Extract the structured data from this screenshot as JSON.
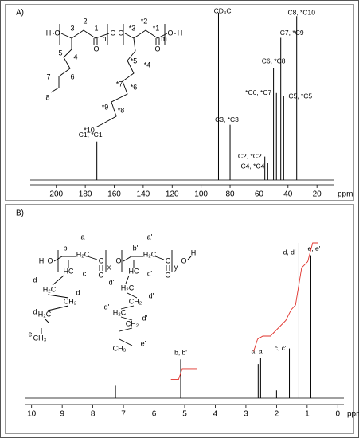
{
  "chart_data": [
    {
      "type": "spectrum",
      "panel_label": "A)",
      "xlabel": "ppm",
      "color": "#000000",
      "x": [
        172,
        88,
        80,
        56,
        54,
        50,
        48,
        45,
        43,
        34
      ],
      "values": [
        23,
        100,
        33,
        14,
        10,
        67,
        52,
        85,
        50,
        98
      ],
      "labels": [
        "C1, *C1",
        "CD₃Cl",
        "C3, *C3",
        "C2, *C2",
        "C4, *C4",
        "C6, *C8",
        "*C6, *C7",
        "C7, *C9",
        "C5, *C5",
        "C8, *C10"
      ],
      "xlim": [
        218,
        8
      ],
      "xticks": [
        200,
        180,
        160,
        140,
        120,
        100,
        80,
        60,
        40,
        20
      ],
      "structure": [
        "H",
        "O",
        "3",
        "2",
        "1",
        "O",
        "n",
        "O",
        "O",
        "*3",
        "*2",
        "*1",
        "O",
        "m",
        "O",
        "H",
        "5",
        "4",
        "7",
        "6",
        "8",
        "*5",
        "*4",
        "*7",
        "*6",
        "*9",
        "*8",
        "*10"
      ]
    },
    {
      "type": "spectrum",
      "panel_label": "B)",
      "xlabel": "ppm",
      "color": "#000000",
      "x": [
        7.26,
        5.13,
        2.6,
        2.52,
        2.0,
        1.58,
        1.27,
        0.88
      ],
      "values": [
        8,
        25,
        22,
        26,
        5,
        32,
        100,
        92
      ],
      "labels": [
        null,
        "b, b'",
        null,
        "a, a'",
        null,
        "c, c'",
        "d, d'",
        "e, e'"
      ],
      "xlim": [
        10.2,
        -0.2
      ],
      "xticks": [
        10,
        9,
        8,
        7,
        6,
        5,
        4,
        3,
        2,
        1,
        0
      ],
      "integral": {
        "color": "#e0302a",
        "x": [
          5.45,
          5.2,
          5.08,
          4.6,
          null,
          2.75,
          2.62,
          2.45,
          2.2,
          1.7,
          1.52,
          1.38,
          1.18,
          0.98,
          0.82,
          0.65
        ],
        "values": [
          12,
          12,
          19,
          19,
          null,
          30,
          38,
          40,
          40,
          50,
          57,
          60,
          84,
          88,
          100,
          100
        ]
      },
      "structure": [
        "H",
        "O",
        "b",
        "a",
        "H₂C",
        "C",
        "O",
        "x",
        "O",
        "b'",
        "a'",
        "H₂C",
        "C",
        "O",
        "y",
        "O",
        "H",
        "c",
        "HC",
        "d",
        "H₂C",
        "d",
        "CH₂",
        "d",
        "H₂C",
        "CH₃",
        "e",
        "c'",
        "HC",
        "d'",
        "H₂C",
        "d'",
        "CH₂",
        "d'",
        "H₂C",
        "d'",
        "CH₂",
        "e'",
        "CH₃"
      ]
    }
  ]
}
